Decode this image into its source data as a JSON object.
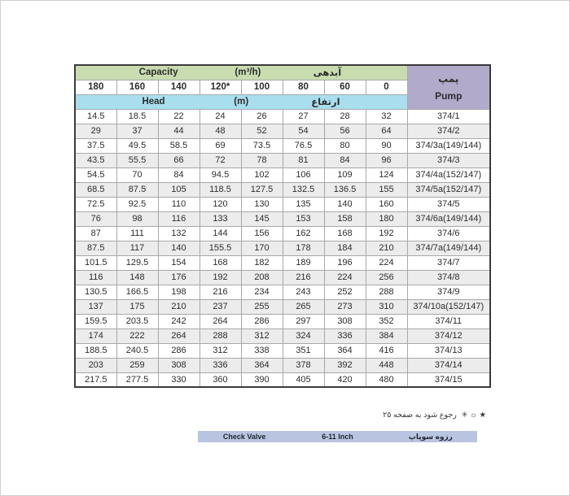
{
  "colors": {
    "green": "#c9dcb0",
    "blue": "#a9deee",
    "purple": "#b1aaca",
    "stripe": "#ececec",
    "bar": "#b9c4e0"
  },
  "table": {
    "capacity_header": {
      "en": "Capacity",
      "unit": "(m³/h)",
      "fa": "آبدهی"
    },
    "head_header": {
      "en": "Head",
      "unit": "(m)",
      "fa": "ارتفاع"
    },
    "pump_header": {
      "fa": "پمپ",
      "en": "Pump"
    },
    "flow_columns": [
      "180",
      "160",
      "140",
      "120*",
      "100",
      "80",
      "60",
      "0"
    ],
    "rows": [
      {
        "values": [
          14.5,
          18.5,
          22,
          24,
          26,
          27,
          28,
          32
        ],
        "pump": "374/1"
      },
      {
        "values": [
          29,
          37,
          44,
          48,
          52,
          54,
          56,
          64
        ],
        "pump": "374/2"
      },
      {
        "values": [
          37.5,
          49.5,
          58.5,
          69,
          73.5,
          76.5,
          80,
          90
        ],
        "pump": "374/3a(149/144)"
      },
      {
        "values": [
          43.5,
          55.5,
          66,
          72,
          78,
          81,
          84,
          96
        ],
        "pump": "374/3"
      },
      {
        "values": [
          54.5,
          70,
          84,
          94.5,
          102,
          106,
          109,
          124
        ],
        "pump": "374/4a(152/147)"
      },
      {
        "values": [
          68.5,
          87.5,
          105,
          118.5,
          127.5,
          132.5,
          136.5,
          155
        ],
        "pump": "374/5a(152/147)"
      },
      {
        "values": [
          72.5,
          92.5,
          110,
          120,
          130,
          135,
          140,
          160
        ],
        "pump": "374/5"
      },
      {
        "values": [
          76,
          98,
          116,
          133,
          145,
          153,
          158,
          180
        ],
        "pump": "374/6a(149/144)"
      },
      {
        "values": [
          87,
          111,
          132,
          144,
          156,
          162,
          168,
          192
        ],
        "pump": "374/6"
      },
      {
        "values": [
          87.5,
          117,
          140,
          155.5,
          170,
          178,
          184,
          210
        ],
        "pump": "374/7a(149/144)"
      },
      {
        "values": [
          101.5,
          129.5,
          154,
          168,
          182,
          189,
          196,
          224
        ],
        "pump": "374/7"
      },
      {
        "values": [
          116,
          148,
          176,
          192,
          208,
          216,
          224,
          256
        ],
        "pump": "374/8"
      },
      {
        "values": [
          130.5,
          166.5,
          198,
          216,
          234,
          243,
          252,
          288
        ],
        "pump": "374/9"
      },
      {
        "values": [
          137,
          175,
          210,
          237,
          255,
          265,
          273,
          310
        ],
        "pump": "374/10a(152/147)"
      },
      {
        "values": [
          159.5,
          203.5,
          242,
          264,
          286,
          297,
          308,
          352
        ],
        "pump": "374/11"
      },
      {
        "values": [
          174,
          222,
          264,
          288,
          312,
          324,
          336,
          384
        ],
        "pump": "374/12"
      },
      {
        "values": [
          188.5,
          240.5,
          286,
          312,
          338,
          351,
          364,
          416
        ],
        "pump": "374/13"
      },
      {
        "values": [
          203,
          259,
          308,
          336,
          364,
          378,
          392,
          448
        ],
        "pump": "374/14"
      },
      {
        "values": [
          217.5,
          277.5,
          330,
          360,
          390,
          405,
          420,
          480
        ],
        "pump": "374/15"
      }
    ]
  },
  "footnote": {
    "symbols": "★ ☼ ✳",
    "text": "رجوع شود به صفحه ۲۵"
  },
  "bottom_bar": {
    "left": "Check Valve",
    "center": "6-11 Inch",
    "right": "رزوه سوپاپ"
  }
}
